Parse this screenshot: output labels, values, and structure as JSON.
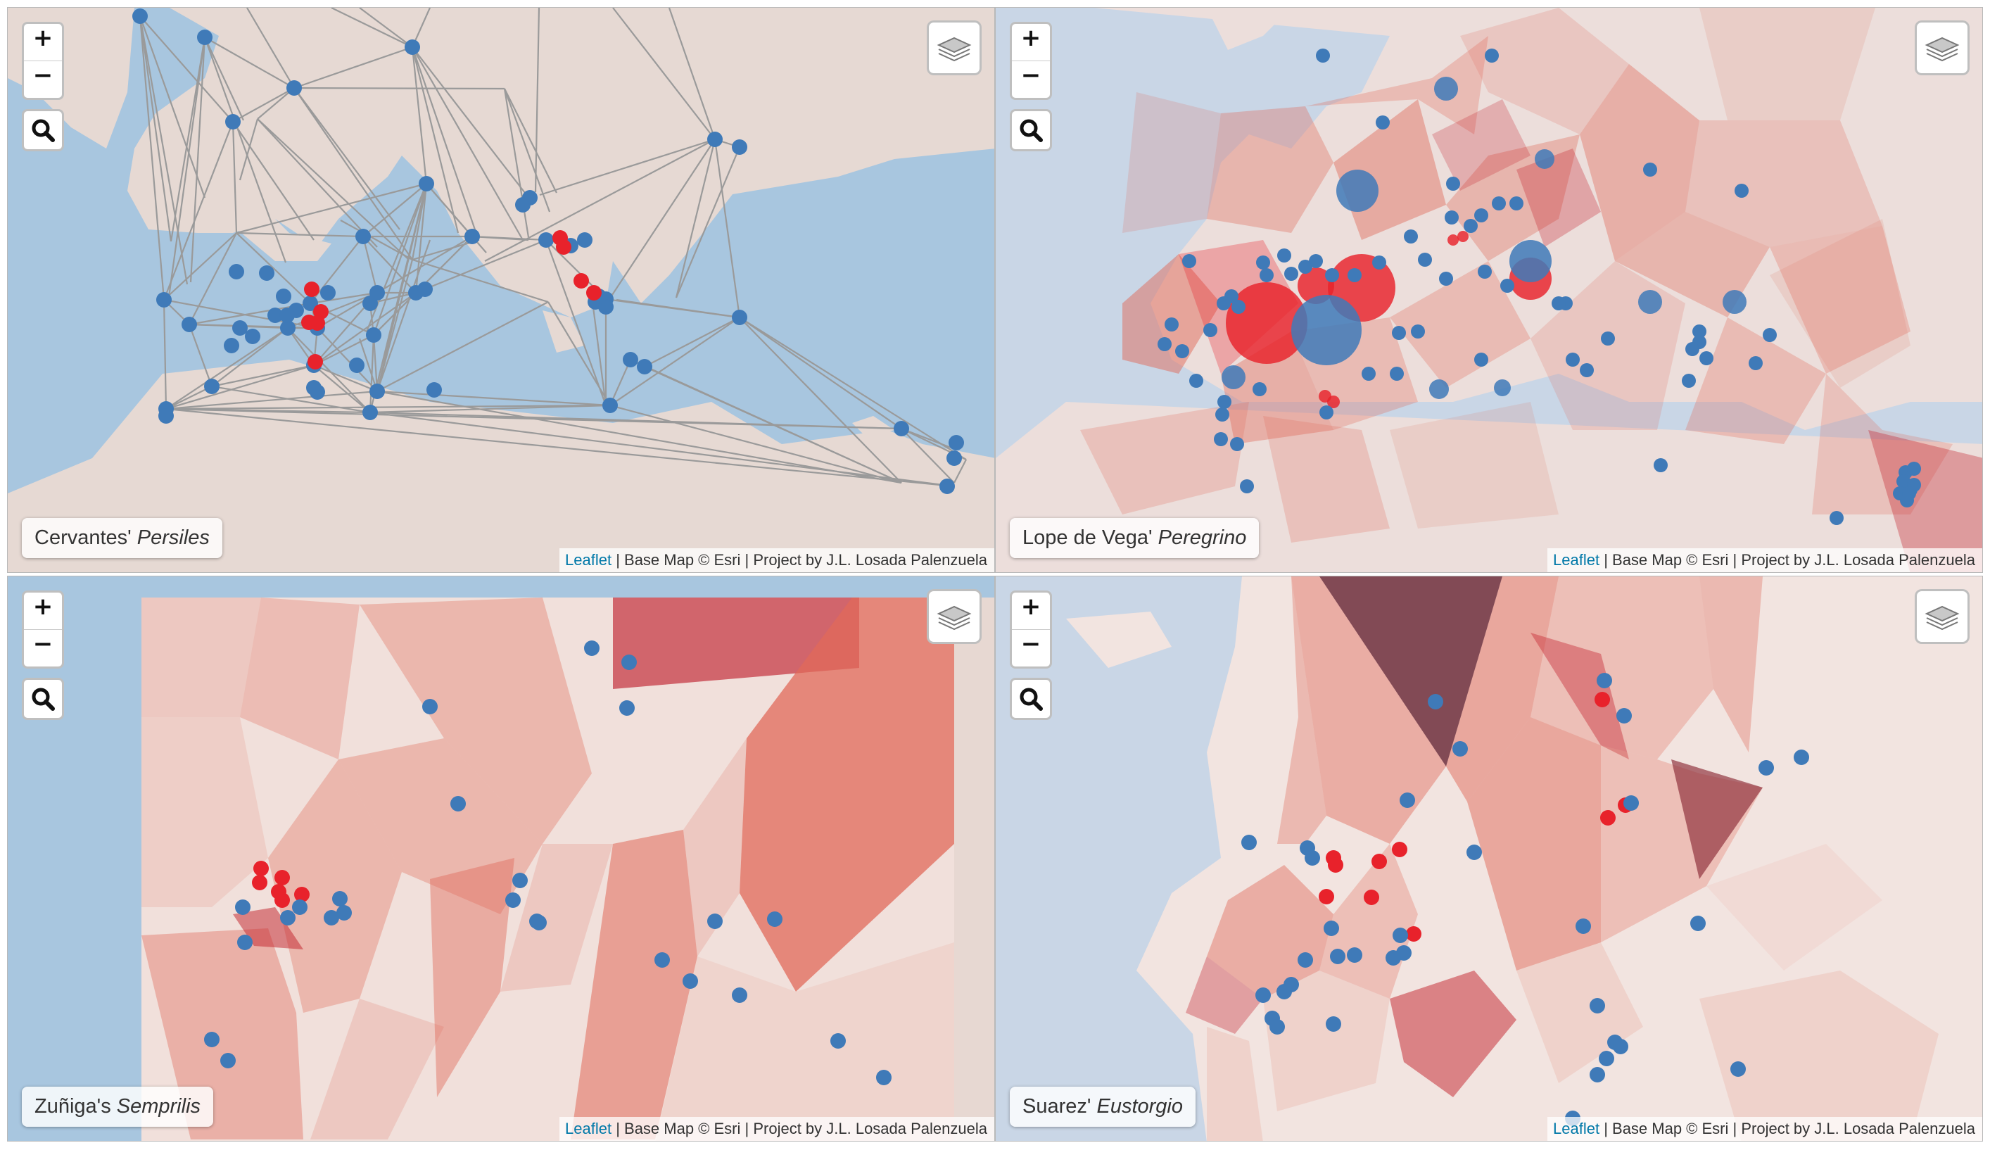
{
  "controls": {
    "zoom_in": "+",
    "zoom_out": "−",
    "search_icon": "magnifier-icon",
    "layers_icon": "layers-icon"
  },
  "colors": {
    "sea": "#a8c6df",
    "land": "#e6d9d3",
    "point_blue": "#3f7ab8",
    "point_red": "#e8222b",
    "edge_gray": "#9a9a9a",
    "voronoi": "#e06a5a"
  },
  "attribution": {
    "leaflet": "Leaflet",
    "text": " | Base Map © Esri | Project by J.L. Losada Palenzuela"
  },
  "maps": [
    {
      "id": "persiles",
      "title_prefix": "Cervantes' ",
      "title_work": "Persiles",
      "layer": "network"
    },
    {
      "id": "peregrino",
      "title_prefix": "Lope de Vega' ",
      "title_work": "Peregrino",
      "layer": "voronoi-sized"
    },
    {
      "id": "semprilis",
      "title_prefix": "Zuñiga's ",
      "title_work": "Semprilis",
      "layer": "voronoi"
    },
    {
      "id": "eustorgio",
      "title_prefix": "Suarez' ",
      "title_work": "Eustorgio",
      "layer": "voronoi"
    }
  ]
}
